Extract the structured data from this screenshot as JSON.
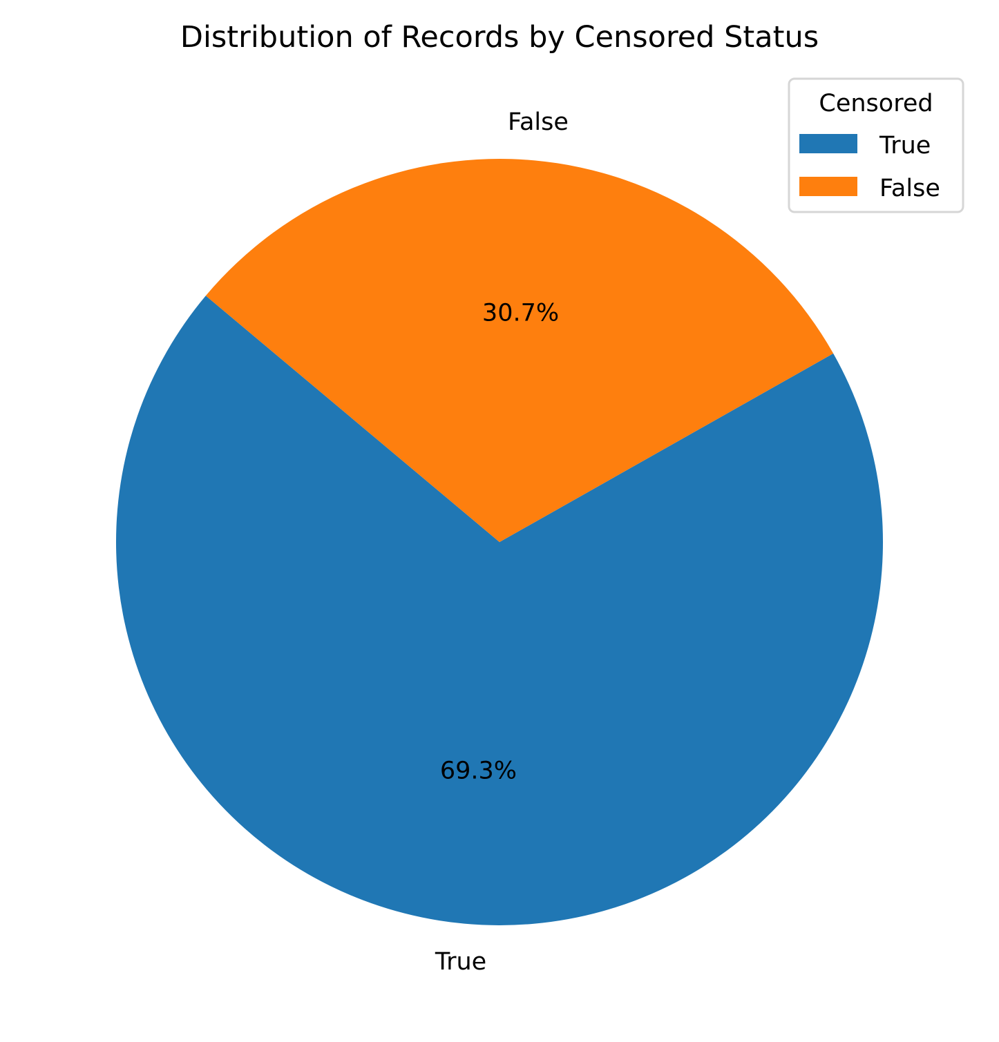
{
  "chart_data": {
    "type": "pie",
    "title": "Distribution of Records by Censored Status",
    "slices": [
      {
        "label": "True",
        "value": 69.3,
        "pct_label": "69.3%",
        "color": "#2077b4"
      },
      {
        "label": "False",
        "value": 30.7,
        "pct_label": "30.7%",
        "color": "#fe7f0e"
      }
    ],
    "legend": {
      "title": "Censored",
      "placement": "top-right",
      "entries": [
        "True",
        "False"
      ]
    }
  }
}
